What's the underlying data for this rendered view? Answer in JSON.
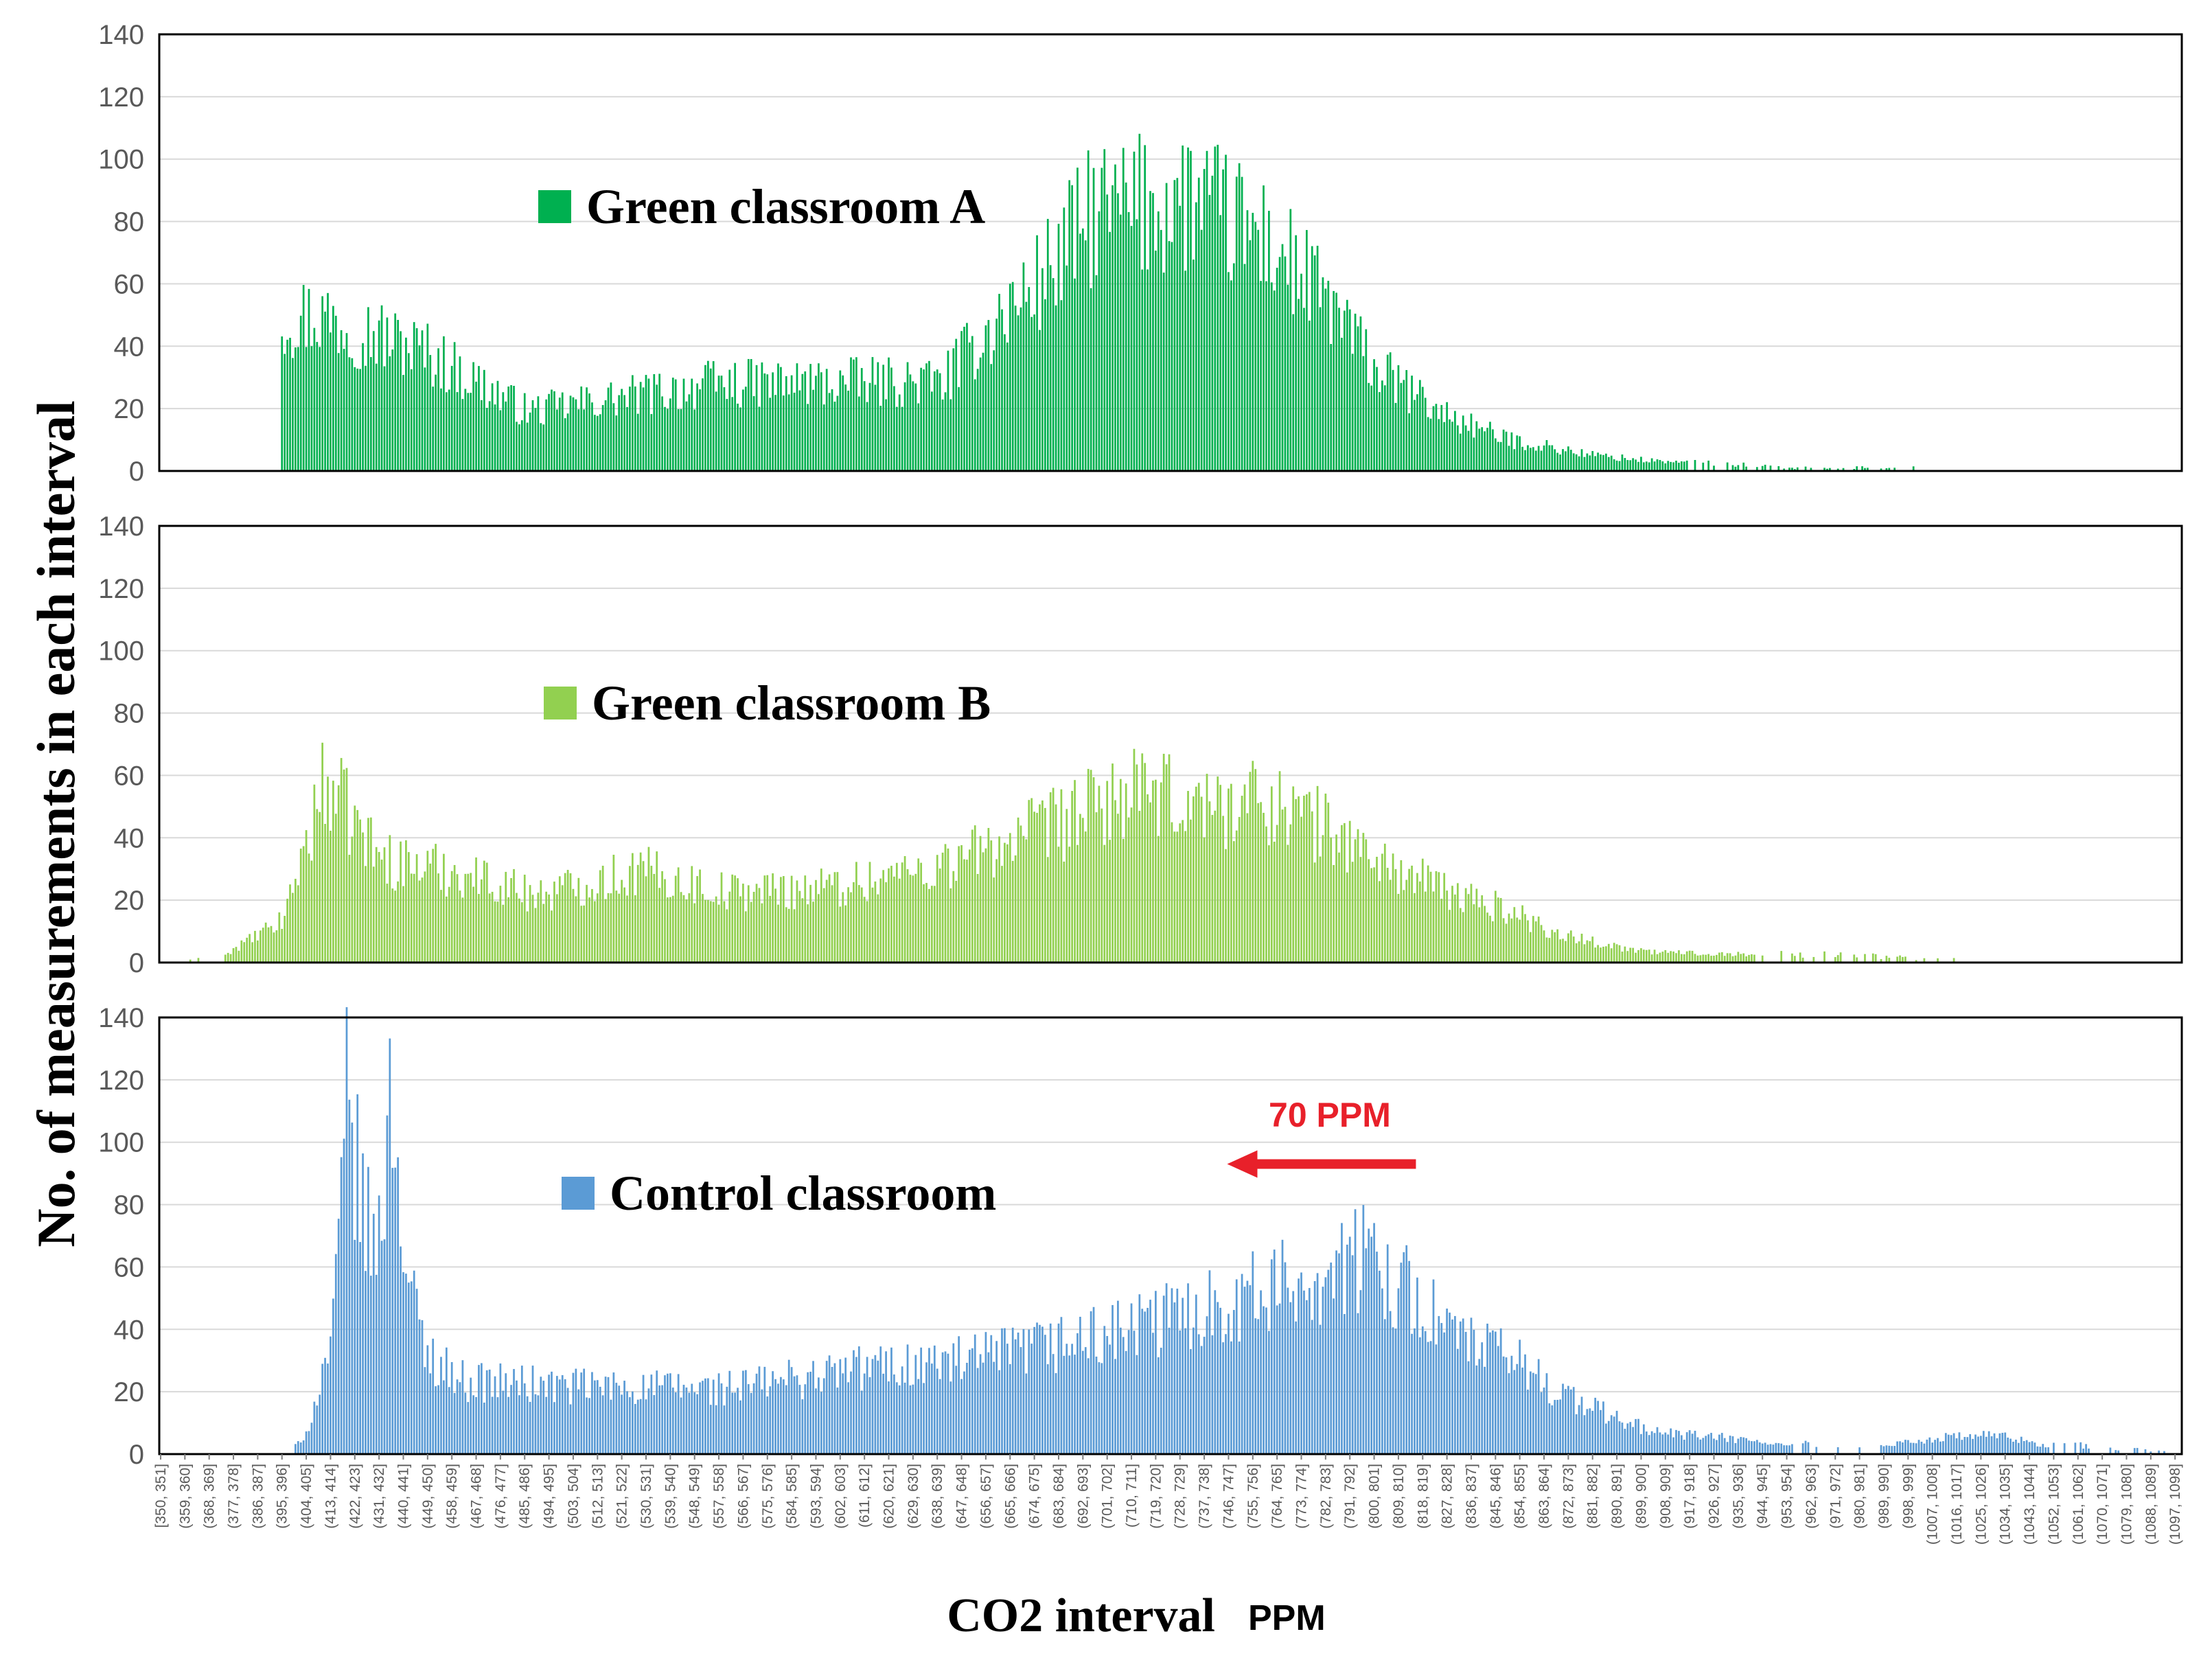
{
  "chart_data": {
    "type": "bar",
    "ylabel": "No. of measurements in each interval",
    "xlabel": "CO2 interval",
    "xlabel_unit": "PPM",
    "ylim": [
      0,
      140
    ],
    "yticks": [
      0,
      20,
      40,
      60,
      80,
      100,
      120,
      140
    ],
    "grid": true,
    "legend_placement": "inside each panel, upper-left",
    "x_start": 350,
    "x_end": 1099,
    "bin_width": 1,
    "categories": [
      "[350, 351]",
      "(359, 360]",
      "(368, 369]",
      "(377, 378]",
      "(386, 387]",
      "(395, 396]",
      "(404, 405]",
      "(413, 414]",
      "(422, 423]",
      "(431, 432]",
      "(440, 441]",
      "(449, 450]",
      "(458, 459]",
      "(467, 468]",
      "(476, 477]",
      "(485, 486]",
      "(494, 495]",
      "(503, 504]",
      "(512, 513]",
      "(521, 522]",
      "(530, 531]",
      "(539, 540]",
      "(548, 549]",
      "(557, 558]",
      "(566, 567]",
      "(575, 576]",
      "(584, 585]",
      "(593, 594]",
      "(602, 603]",
      "(611, 612]",
      "(620, 621]",
      "(629, 630]",
      "(638, 639]",
      "(647, 648]",
      "(656, 657]",
      "(665, 666]",
      "(674, 675]",
      "(683, 684]",
      "(692, 693]",
      "(701, 702]",
      "(710, 711]",
      "(719, 720]",
      "(728, 729]",
      "(737, 738]",
      "(746, 747]",
      "(755, 756]",
      "(764, 765]",
      "(773, 774]",
      "(782, 783]",
      "(791, 792]",
      "(800, 801]",
      "(809, 810]",
      "(818, 819]",
      "(827, 828]",
      "(836, 837]",
      "(845, 846]",
      "(854, 855]",
      "(863, 864]",
      "(872, 873]",
      "(881, 882]",
      "(890, 891]",
      "(899, 900]",
      "(908, 909]",
      "(917, 918]",
      "(926, 927]",
      "(935, 936]",
      "(944, 945]",
      "(953, 954]",
      "(962, 963]",
      "(971, 972]",
      "(980, 981]",
      "(989, 990]",
      "(998, 999]",
      "(1007, 1008]",
      "(1016, 1017]",
      "(1025, 1026]",
      "(1034, 1035]",
      "(1043, 1044]",
      "(1052, 1053]",
      "(1061, 1062]",
      "(1070, 1071]",
      "(1079, 1080]",
      "(1088, 1089]",
      "(1097, 1098]"
    ],
    "series": [
      {
        "name": "Green classroom A",
        "color": "#00b050",
        "peaks": [
          [
            410,
            57
          ],
          [
            448,
            44
          ],
          [
            486,
            22
          ],
          [
            555,
            32
          ],
          [
            640,
            33
          ],
          [
            660,
            55
          ],
          [
            676,
            70
          ],
          [
            696,
            95
          ],
          [
            732,
            100
          ],
          [
            760,
            85
          ],
          [
            785,
            60
          ],
          [
            800,
            38
          ],
          [
            824,
            22
          ],
          [
            848,
            12
          ],
          [
            880,
            6
          ],
          [
            900,
            4
          ],
          [
            950,
            1
          ],
          [
            990,
            1
          ]
        ],
        "support": [
          395,
          1000
        ]
      },
      {
        "name": "Green classroom B",
        "color": "#92d050",
        "peaks": [
          [
            370,
            1
          ],
          [
            395,
            15
          ],
          [
            411,
            67
          ],
          [
            432,
            38
          ],
          [
            462,
            33
          ],
          [
            490,
            25
          ],
          [
            528,
            34
          ],
          [
            560,
            26
          ],
          [
            600,
            28
          ],
          [
            640,
            36
          ],
          [
            680,
            50
          ],
          [
            708,
            62
          ],
          [
            738,
            58
          ],
          [
            762,
            60
          ],
          [
            785,
            48
          ],
          [
            806,
            35
          ],
          [
            830,
            25
          ],
          [
            848,
            20
          ],
          [
            870,
            10
          ],
          [
            900,
            4
          ],
          [
            940,
            3
          ],
          [
            980,
            2
          ],
          [
            1010,
            1
          ]
        ],
        "support": [
          360,
          1015
        ]
      },
      {
        "name": "Control classroom",
        "color": "#5b9bd5",
        "peaks": [
          [
            403,
            4
          ],
          [
            414,
            45
          ],
          [
            419,
            128
          ],
          [
            426,
            85
          ],
          [
            430,
            75
          ],
          [
            436,
            135
          ],
          [
            441,
            68
          ],
          [
            448,
            38
          ],
          [
            462,
            27
          ],
          [
            500,
            25
          ],
          [
            560,
            24
          ],
          [
            612,
            32
          ],
          [
            650,
            34
          ],
          [
            680,
            40
          ],
          [
            708,
            45
          ],
          [
            740,
            55
          ],
          [
            768,
            62
          ],
          [
            800,
            73
          ],
          [
            814,
            58
          ],
          [
            832,
            42
          ],
          [
            852,
            35
          ],
          [
            870,
            22
          ],
          [
            890,
            13
          ],
          [
            905,
            8
          ],
          [
            930,
            6
          ],
          [
            955,
            3
          ],
          [
            980,
            2
          ],
          [
            1010,
            6
          ],
          [
            1030,
            7
          ],
          [
            1050,
            3
          ],
          [
            1090,
            1
          ]
        ],
        "support": [
          400,
          1099
        ]
      }
    ],
    "annotation": {
      "text": "70 PPM",
      "arrow_from": 816,
      "arrow_to": 746,
      "series_index": 2,
      "arrow_y": 93,
      "text_y": 105,
      "color": "#e8202a"
    }
  }
}
